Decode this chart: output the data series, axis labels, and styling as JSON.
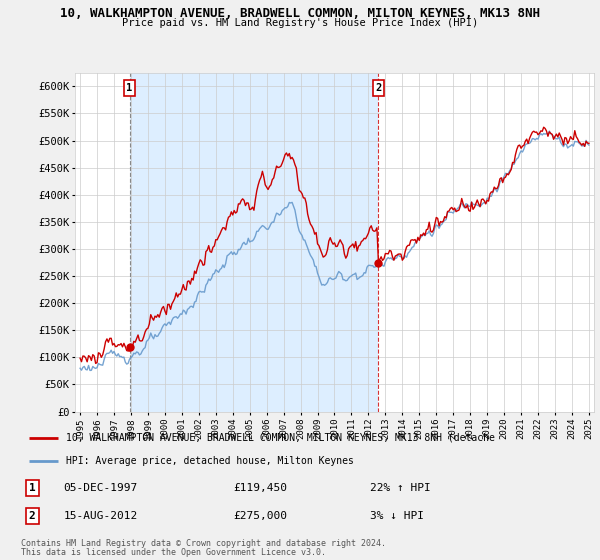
{
  "title1": "10, WALKHAMPTON AVENUE, BRADWELL COMMON, MILTON KEYNES, MK13 8NH",
  "title2": "Price paid vs. HM Land Registry's House Price Index (HPI)",
  "background_color": "#f0f0f0",
  "plot_bg_color": "#ffffff",
  "shaded_region_color": "#ddeeff",
  "hpi_color": "#6699cc",
  "price_color": "#cc0000",
  "ylim": [
    0,
    625000
  ],
  "xlim_start": 1994.7,
  "xlim_end": 2025.3,
  "yticks": [
    0,
    50000,
    100000,
    150000,
    200000,
    250000,
    300000,
    350000,
    400000,
    450000,
    500000,
    550000,
    600000
  ],
  "sale1_t": 1997.92,
  "sale2_t": 2012.58,
  "sale1_price": 119450,
  "sale2_price": 275000,
  "sale1_date": "05-DEC-1997",
  "sale2_date": "15-AUG-2012",
  "sale1_hpi_pct": "22%",
  "sale1_hpi_dir": "↑",
  "sale2_hpi_pct": "3%",
  "sale2_hpi_dir": "↓",
  "legend_line1": "10, WALKHAMPTON AVENUE, BRADWELL COMMON, MILTON KEYNES, MK13 8NH (detache",
  "legend_line2": "HPI: Average price, detached house, Milton Keynes",
  "footer1": "Contains HM Land Registry data © Crown copyright and database right 2024.",
  "footer2": "This data is licensed under the Open Government Licence v3.0."
}
